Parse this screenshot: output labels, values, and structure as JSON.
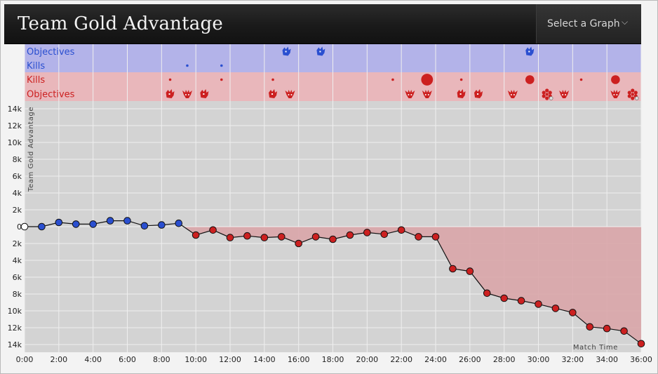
{
  "header": {
    "title": "Team Gold Advantage",
    "select_label": "Select a Graph",
    "chevron_icon": "chevron-down-icon"
  },
  "chart_data": {
    "type": "line",
    "ylabel": "Team Gold Advantage",
    "xlabel": "Match Time",
    "x_unit": "minutes",
    "xlim": [
      0,
      36
    ],
    "ylim": [
      -15000,
      15000
    ],
    "x_ticks": [
      "0:00",
      "2:00",
      "4:00",
      "6:00",
      "8:00",
      "10:00",
      "12:00",
      "14:00",
      "16:00",
      "18:00",
      "20:00",
      "22:00",
      "24:00",
      "26:00",
      "28:00",
      "30:00",
      "32:00",
      "34:00",
      "36:00"
    ],
    "y_ticks": [
      {
        "value": 14000,
        "label": "14k"
      },
      {
        "value": 12000,
        "label": "12k"
      },
      {
        "value": 10000,
        "label": "10k"
      },
      {
        "value": 8000,
        "label": "8k"
      },
      {
        "value": 6000,
        "label": "6k"
      },
      {
        "value": 4000,
        "label": "4k"
      },
      {
        "value": 2000,
        "label": "2k"
      },
      {
        "value": 0,
        "label": "0"
      },
      {
        "value": -2000,
        "label": "2k"
      },
      {
        "value": -4000,
        "label": "4k"
      },
      {
        "value": -6000,
        "label": "6k"
      },
      {
        "value": -8000,
        "label": "8k"
      },
      {
        "value": -10000,
        "label": "10k"
      },
      {
        "value": -12000,
        "label": "12k"
      },
      {
        "value": -14000,
        "label": "14k"
      }
    ],
    "grid": true,
    "x": [
      0,
      1,
      2,
      3,
      4,
      5,
      6,
      7,
      8,
      9,
      10,
      11,
      12,
      13,
      14,
      15,
      16,
      17,
      18,
      19,
      20,
      21,
      22,
      23,
      24,
      25,
      26,
      27,
      28,
      29,
      30,
      31,
      32,
      33,
      34,
      35,
      36
    ],
    "values": [
      0,
      0,
      500,
      300,
      300,
      700,
      700,
      100,
      200,
      400,
      -1000,
      -400,
      -1300,
      -1100,
      -1300,
      -1200,
      -2000,
      -1200,
      -1500,
      -1000,
      -700,
      -900,
      -400,
      -1200,
      -1200,
      -5000,
      -5300,
      -7900,
      -8500,
      -8800,
      -9200,
      -9700,
      -10200,
      -11900,
      -12100,
      -12400,
      -13900
    ],
    "colors": {
      "blue_team": "#2a4fd0",
      "red_team": "#cc2020",
      "neutral": "#ffffff"
    },
    "lanes": [
      {
        "label": "Objectives",
        "team": "blue",
        "events": [
          {
            "t": 15.3,
            "icon": "dragon-icon"
          },
          {
            "t": 17.3,
            "icon": "dragon-icon"
          },
          {
            "t": 29.5,
            "icon": "dragon-icon"
          }
        ]
      },
      {
        "label": "Kills",
        "team": "blue",
        "events": [
          {
            "t": 9.5,
            "size": 1
          },
          {
            "t": 11.5,
            "size": 1
          }
        ]
      },
      {
        "label": "Kills",
        "team": "red",
        "events": [
          {
            "t": 8.5,
            "size": 1
          },
          {
            "t": 11.5,
            "size": 1
          },
          {
            "t": 14.5,
            "size": 1
          },
          {
            "t": 21.5,
            "size": 1
          },
          {
            "t": 23.5,
            "size": 4
          },
          {
            "t": 25.5,
            "size": 1
          },
          {
            "t": 29.5,
            "size": 3
          },
          {
            "t": 32.5,
            "size": 1
          },
          {
            "t": 34.5,
            "size": 3
          }
        ]
      },
      {
        "label": "Objectives",
        "team": "red",
        "events": [
          {
            "t": 8.5,
            "icon": "dragon-icon"
          },
          {
            "t": 9.5,
            "icon": "tower-icon"
          },
          {
            "t": 10.5,
            "icon": "dragon-icon"
          },
          {
            "t": 14.5,
            "icon": "dragon-icon"
          },
          {
            "t": 15.5,
            "icon": "tower-icon"
          },
          {
            "t": 22.5,
            "icon": "tower-icon"
          },
          {
            "t": 23.5,
            "icon": "tower-icon"
          },
          {
            "t": 25.5,
            "icon": "dragon-icon"
          },
          {
            "t": 26.5,
            "icon": "dragon-icon"
          },
          {
            "t": 28.5,
            "icon": "tower-icon"
          },
          {
            "t": 30.5,
            "icon": "camp-icon"
          },
          {
            "t": 31.5,
            "icon": "tower-icon"
          },
          {
            "t": 34.5,
            "icon": "tower-icon"
          },
          {
            "t": 35.5,
            "icon": "camp-icon"
          }
        ]
      }
    ]
  }
}
